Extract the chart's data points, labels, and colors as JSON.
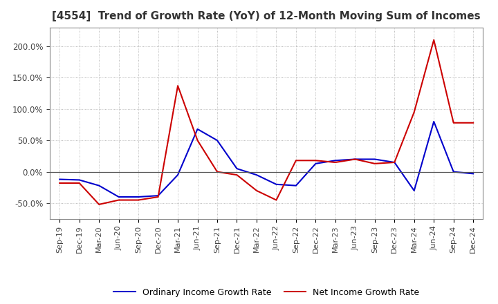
{
  "title": "[4554]  Trend of Growth Rate (YoY) of 12-Month Moving Sum of Incomes",
  "title_fontsize": 11,
  "ylim": [
    -75,
    230
  ],
  "yticks": [
    -50,
    0,
    50,
    100,
    150,
    200
  ],
  "background_color": "#ffffff",
  "grid_color": "#aaaaaa",
  "ordinary_income_color": "#0000cc",
  "net_income_color": "#cc0000",
  "line_width": 1.5,
  "legend_labels": [
    "Ordinary Income Growth Rate",
    "Net Income Growth Rate"
  ],
  "x_labels": [
    "Sep-19",
    "Dec-19",
    "Mar-20",
    "Jun-20",
    "Sep-20",
    "Dec-20",
    "Mar-21",
    "Jun-21",
    "Sep-21",
    "Dec-21",
    "Mar-22",
    "Jun-22",
    "Sep-22",
    "Dec-22",
    "Mar-23",
    "Jun-23",
    "Sep-23",
    "Dec-23",
    "Mar-24",
    "Jun-24",
    "Sep-24",
    "Dec-24"
  ],
  "ordinary_income": [
    -12,
    -13,
    -22,
    -40,
    -40,
    -38,
    -5,
    68,
    50,
    5,
    -5,
    -20,
    -22,
    13,
    18,
    20,
    20,
    15,
    -30,
    80,
    0,
    -3
  ],
  "net_income": [
    -18,
    -18,
    -52,
    -45,
    -45,
    -40,
    137,
    50,
    0,
    -5,
    -30,
    -45,
    18,
    18,
    15,
    20,
    13,
    15,
    95,
    210,
    78,
    78
  ]
}
